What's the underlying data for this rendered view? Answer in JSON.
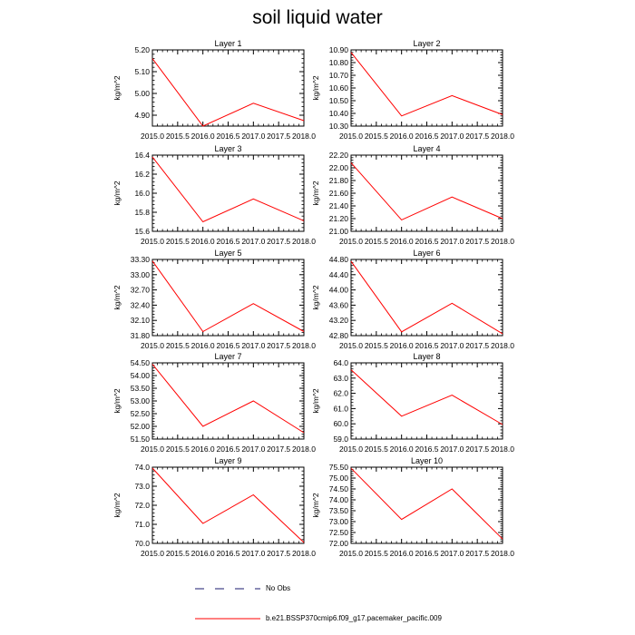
{
  "title": "soil liquid water",
  "legend": {
    "obs_label": "No Obs",
    "obs_color": "#1a1a6e",
    "model_label": "b.e21.BSSP370cmip6.f09_g17.pacemaker_pacific.009",
    "model_color": "#ff0000"
  },
  "chart_data": [
    {
      "type": "line",
      "title": "Layer 1",
      "ylabel": "kg/m^2",
      "xlabel": "",
      "x": [
        2015.0,
        2016.0,
        2017.0,
        2018.0
      ],
      "y": [
        5.16,
        4.85,
        4.955,
        4.875
      ],
      "xlim": [
        2015.0,
        2018.0
      ],
      "ylim": [
        4.85,
        5.2
      ],
      "xticks": [
        "2015.0",
        "2015.5",
        "2016.0",
        "2016.5",
        "2017.0",
        "2017.5",
        "2018.0"
      ],
      "yticks": [
        "4.90",
        "5.00",
        "5.10",
        "5.20"
      ],
      "ytick_values": [
        4.9,
        5.0,
        5.1,
        5.2
      ]
    },
    {
      "type": "line",
      "title": "Layer 2",
      "ylabel": "kg/m^2",
      "xlabel": "",
      "x": [
        2015.0,
        2016.0,
        2017.0,
        2018.0
      ],
      "y": [
        10.88,
        10.38,
        10.54,
        10.39
      ],
      "xlim": [
        2015.0,
        2018.0
      ],
      "ylim": [
        10.3,
        10.9
      ],
      "xticks": [
        "2015.0",
        "2015.5",
        "2016.0",
        "2016.5",
        "2017.0",
        "2017.5",
        "2018.0"
      ],
      "yticks": [
        "10.30",
        "10.40",
        "10.50",
        "10.60",
        "10.70",
        "10.80",
        "10.90"
      ],
      "ytick_values": [
        10.3,
        10.4,
        10.5,
        10.6,
        10.7,
        10.8,
        10.9
      ]
    },
    {
      "type": "line",
      "title": "Layer 3",
      "ylabel": "kg/m^2",
      "xlabel": "",
      "x": [
        2015.0,
        2016.0,
        2017.0,
        2018.0
      ],
      "y": [
        16.38,
        15.7,
        15.94,
        15.71
      ],
      "xlim": [
        2015.0,
        2018.0
      ],
      "ylim": [
        15.6,
        16.4
      ],
      "xticks": [
        "2015.0",
        "2015.5",
        "2016.0",
        "2016.5",
        "2017.0",
        "2017.5",
        "2018.0"
      ],
      "yticks": [
        "15.6",
        "15.8",
        "16.0",
        "16.2",
        "16.4"
      ],
      "ytick_values": [
        15.6,
        15.8,
        16.0,
        16.2,
        16.4
      ]
    },
    {
      "type": "line",
      "title": "Layer 4",
      "ylabel": "kg/m^2",
      "xlabel": "",
      "x": [
        2015.0,
        2016.0,
        2017.0,
        2018.0
      ],
      "y": [
        22.08,
        21.18,
        21.54,
        21.2
      ],
      "xlim": [
        2015.0,
        2018.0
      ],
      "ylim": [
        21.0,
        22.2
      ],
      "xticks": [
        "2015.0",
        "2015.5",
        "2016.0",
        "2016.5",
        "2017.0",
        "2017.5",
        "2018.0"
      ],
      "yticks": [
        "21.00",
        "21.20",
        "21.40",
        "21.60",
        "21.80",
        "22.00",
        "22.20"
      ],
      "ytick_values": [
        21.0,
        21.2,
        21.4,
        21.6,
        21.8,
        22.0,
        22.2
      ]
    },
    {
      "type": "line",
      "title": "Layer 5",
      "ylabel": "kg/m^2",
      "xlabel": "",
      "x": [
        2015.0,
        2016.0,
        2017.0,
        2018.0
      ],
      "y": [
        33.27,
        31.88,
        32.43,
        31.88
      ],
      "xlim": [
        2015.0,
        2018.0
      ],
      "ylim": [
        31.8,
        33.3
      ],
      "xticks": [
        "2015.0",
        "2015.5",
        "2016.0",
        "2016.5",
        "2017.0",
        "2017.5",
        "2018.0"
      ],
      "yticks": [
        "31.80",
        "32.10",
        "32.40",
        "32.70",
        "33.00",
        "33.30"
      ],
      "ytick_values": [
        31.8,
        32.1,
        32.4,
        32.7,
        33.0,
        33.3
      ]
    },
    {
      "type": "line",
      "title": "Layer 6",
      "ylabel": "kg/m^2",
      "xlabel": "",
      "x": [
        2015.0,
        2016.0,
        2017.0,
        2018.0
      ],
      "y": [
        44.75,
        42.9,
        43.65,
        42.85
      ],
      "xlim": [
        2015.0,
        2018.0
      ],
      "ylim": [
        42.8,
        44.8
      ],
      "xticks": [
        "2015.0",
        "2015.5",
        "2016.0",
        "2016.5",
        "2017.0",
        "2017.5",
        "2018.0"
      ],
      "yticks": [
        "42.80",
        "43.20",
        "43.60",
        "44.00",
        "44.40",
        "44.80"
      ],
      "ytick_values": [
        42.8,
        43.2,
        43.6,
        44.0,
        44.4,
        44.8
      ]
    },
    {
      "type": "line",
      "title": "Layer 7",
      "ylabel": "kg/m^2",
      "xlabel": "",
      "x": [
        2015.0,
        2016.0,
        2017.0,
        2018.0
      ],
      "y": [
        54.45,
        52.0,
        53.0,
        51.75
      ],
      "xlim": [
        2015.0,
        2018.0
      ],
      "ylim": [
        51.5,
        54.5
      ],
      "xticks": [
        "2015.0",
        "2015.5",
        "2016.0",
        "2016.5",
        "2017.0",
        "2017.5",
        "2018.0"
      ],
      "yticks": [
        "51.50",
        "52.00",
        "52.50",
        "53.00",
        "53.50",
        "54.00",
        "54.50"
      ],
      "ytick_values": [
        51.5,
        52.0,
        52.5,
        53.0,
        53.5,
        54.0,
        54.5
      ]
    },
    {
      "type": "line",
      "title": "Layer 8",
      "ylabel": "kg/m^2",
      "xlabel": "",
      "x": [
        2015.0,
        2016.0,
        2017.0,
        2018.0
      ],
      "y": [
        63.55,
        60.5,
        61.88,
        59.95
      ],
      "xlim": [
        2015.0,
        2018.0
      ],
      "ylim": [
        59.0,
        64.0
      ],
      "xticks": [
        "2015.0",
        "2015.5",
        "2016.0",
        "2016.5",
        "2017.0",
        "2017.5",
        "2018.0"
      ],
      "yticks": [
        "59.0",
        "60.0",
        "61.0",
        "62.0",
        "63.0",
        "64.0"
      ],
      "ytick_values": [
        59.0,
        60.0,
        61.0,
        62.0,
        63.0,
        64.0
      ]
    },
    {
      "type": "line",
      "title": "Layer 9",
      "ylabel": "kg/m^2",
      "xlabel": "",
      "x": [
        2015.0,
        2016.0,
        2017.0,
        2018.0
      ],
      "y": [
        73.95,
        71.05,
        72.55,
        70.05
      ],
      "xlim": [
        2015.0,
        2018.0
      ],
      "ylim": [
        70.0,
        74.0
      ],
      "xticks": [
        "2015.0",
        "2015.5",
        "2016.0",
        "2016.5",
        "2017.0",
        "2017.5",
        "2018.0"
      ],
      "yticks": [
        "70.0",
        "71.0",
        "72.0",
        "73.0",
        "74.0"
      ],
      "ytick_values": [
        70.0,
        71.0,
        72.0,
        73.0,
        74.0
      ]
    },
    {
      "type": "line",
      "title": "Layer 10",
      "ylabel": "kg/m^2",
      "xlabel": "",
      "x": [
        2015.0,
        2016.0,
        2017.0,
        2018.0
      ],
      "y": [
        75.45,
        73.1,
        74.5,
        72.2
      ],
      "xlim": [
        2015.0,
        2018.0
      ],
      "ylim": [
        72.0,
        75.5
      ],
      "xticks": [
        "2015.0",
        "2015.5",
        "2016.0",
        "2016.5",
        "2017.0",
        "2017.5",
        "2018.0"
      ],
      "yticks": [
        "72.00",
        "72.50",
        "73.00",
        "73.50",
        "74.00",
        "74.50",
        "75.00",
        "75.50"
      ],
      "ytick_values": [
        72.0,
        72.5,
        73.0,
        73.5,
        74.0,
        74.5,
        75.0,
        75.5
      ]
    }
  ]
}
